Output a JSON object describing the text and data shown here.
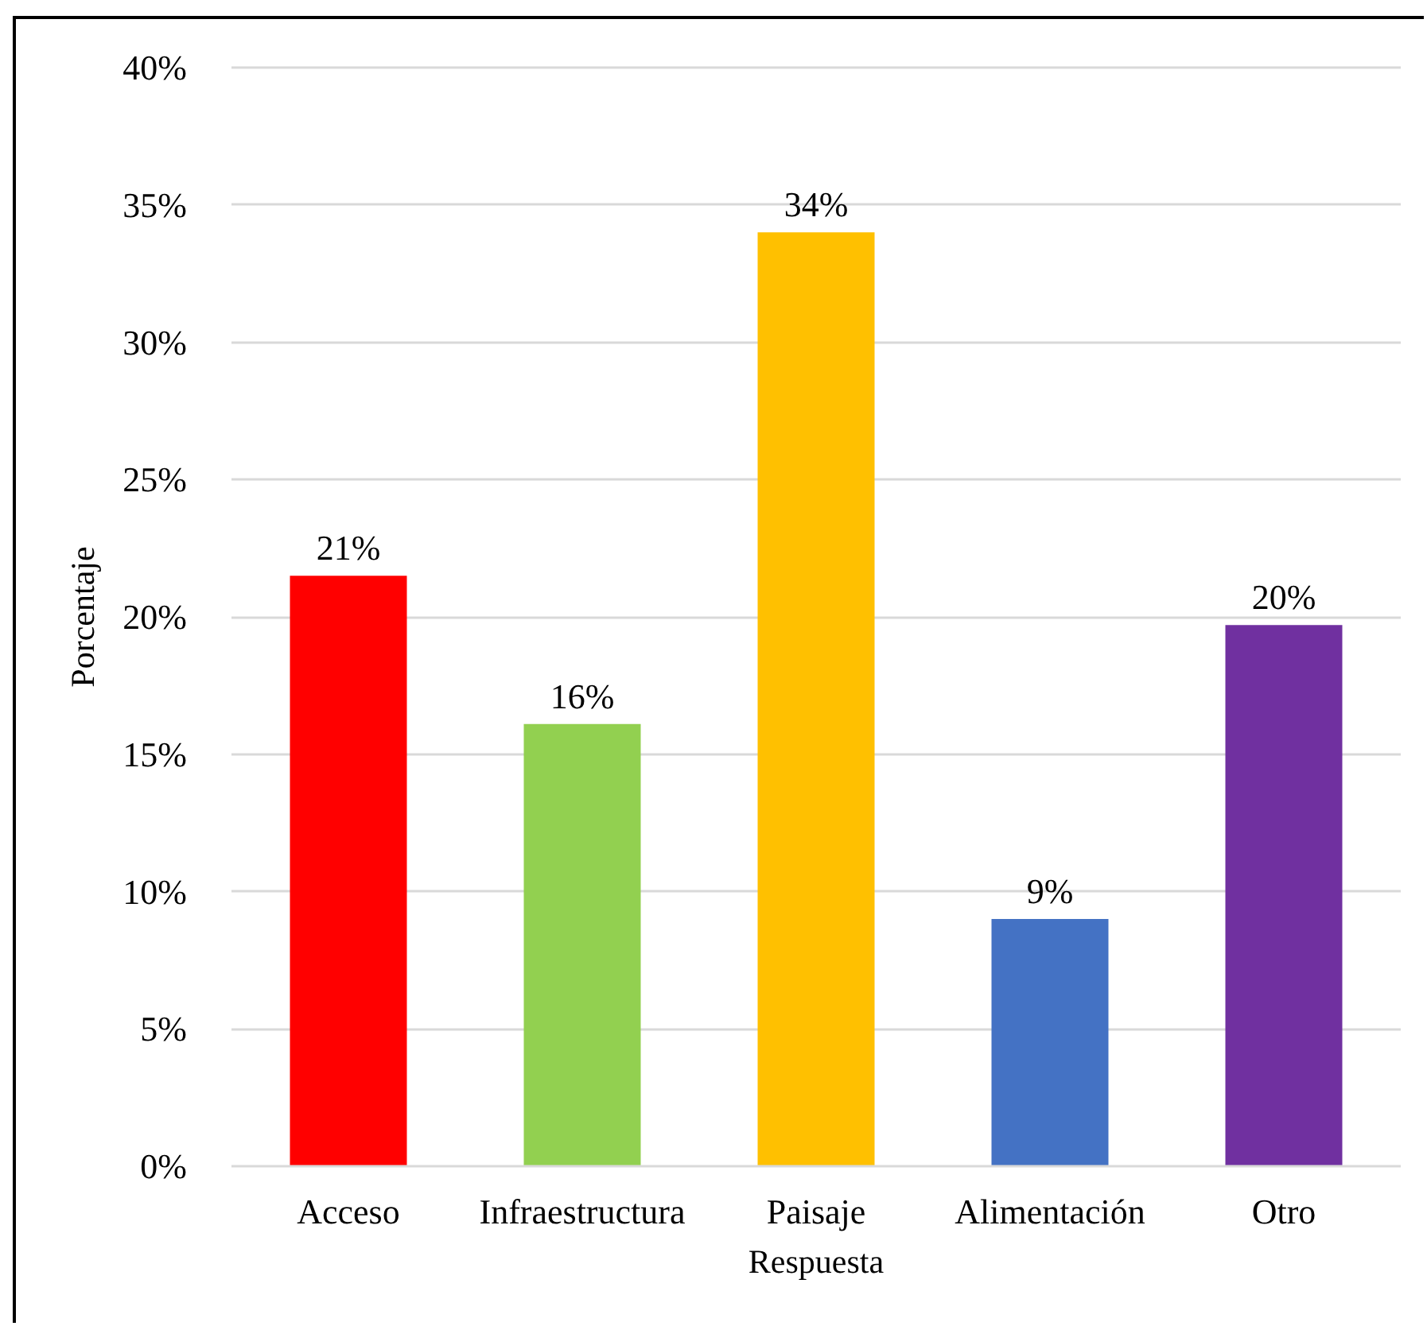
{
  "chart_data": {
    "type": "bar",
    "xlabel": "Respuesta",
    "ylabel": "Porcentaje",
    "categories": [
      "Acceso",
      "Infraestructura",
      "Paisaje",
      "Alimentación",
      "Otro"
    ],
    "values": [
      21.5,
      16.1,
      34,
      9,
      19.7
    ],
    "colors": [
      "#ff0000",
      "#92d050",
      "#ffc000",
      "#4472c4",
      "#7030a0"
    ],
    "value_labels": [
      "21%",
      "16%",
      "34%",
      "9%",
      "20%"
    ],
    "ylim": [
      0,
      40
    ],
    "yticks": [
      {
        "value": 0,
        "label": "0%"
      },
      {
        "value": 5,
        "label": "5%"
      },
      {
        "value": 10,
        "label": "10%"
      },
      {
        "value": 15,
        "label": "15%"
      },
      {
        "value": 20,
        "label": "20%"
      },
      {
        "value": 25,
        "label": "25%"
      },
      {
        "value": 30,
        "label": "30%"
      },
      {
        "value": 35,
        "label": "35%"
      },
      {
        "value": 40,
        "label": "40%"
      }
    ],
    "grid": "y"
  }
}
